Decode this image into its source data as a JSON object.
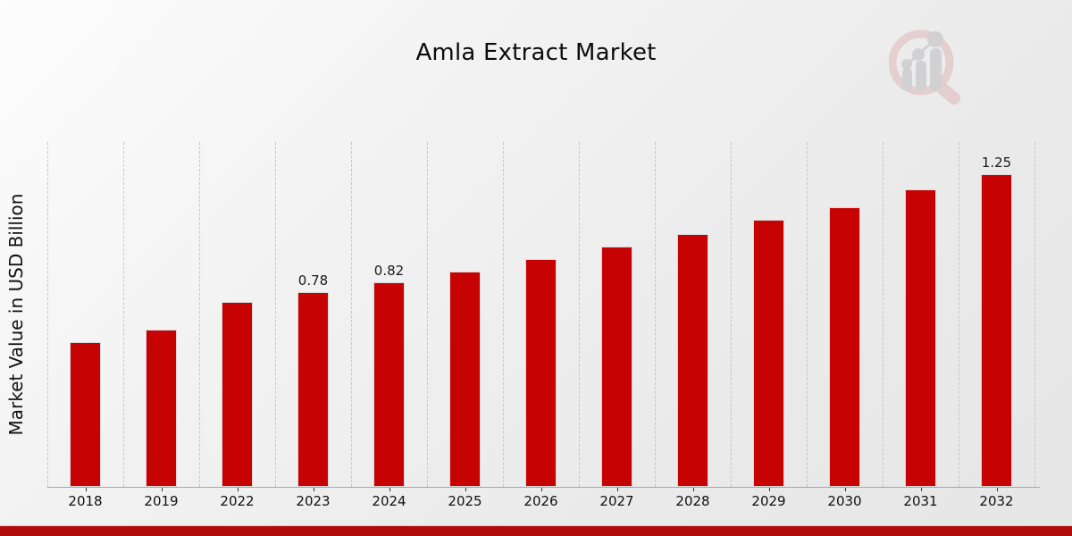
{
  "page": {
    "title": "Amla Extract Market"
  },
  "chart_data": {
    "type": "bar",
    "title": "Amla Extract Market",
    "xlabel": "",
    "ylabel": "Market Value in USD Billion",
    "categories": [
      "2018",
      "2019",
      "2022",
      "2023",
      "2024",
      "2025",
      "2026",
      "2027",
      "2028",
      "2029",
      "2030",
      "2031",
      "2032"
    ],
    "values": [
      0.58,
      0.63,
      0.74,
      0.78,
      0.82,
      0.86,
      0.91,
      0.96,
      1.01,
      1.07,
      1.12,
      1.19,
      1.25
    ],
    "data_labels": [
      "",
      "",
      "",
      "0.78",
      "0.82",
      "",
      "",
      "",
      "",
      "",
      "",
      "",
      "1.25"
    ],
    "ylim": [
      0,
      1.38
    ],
    "grid": "vertical-dashed",
    "legend": "none",
    "bar_color": "#c70202",
    "gridline_color": "#c6c6c6",
    "axis_color": "#a8a8a8",
    "label_color": "#1a1a1a"
  },
  "footer": {
    "band_color": "#b20b0b"
  },
  "logo": {
    "name": "magnifier-growth-chart-watermark"
  }
}
